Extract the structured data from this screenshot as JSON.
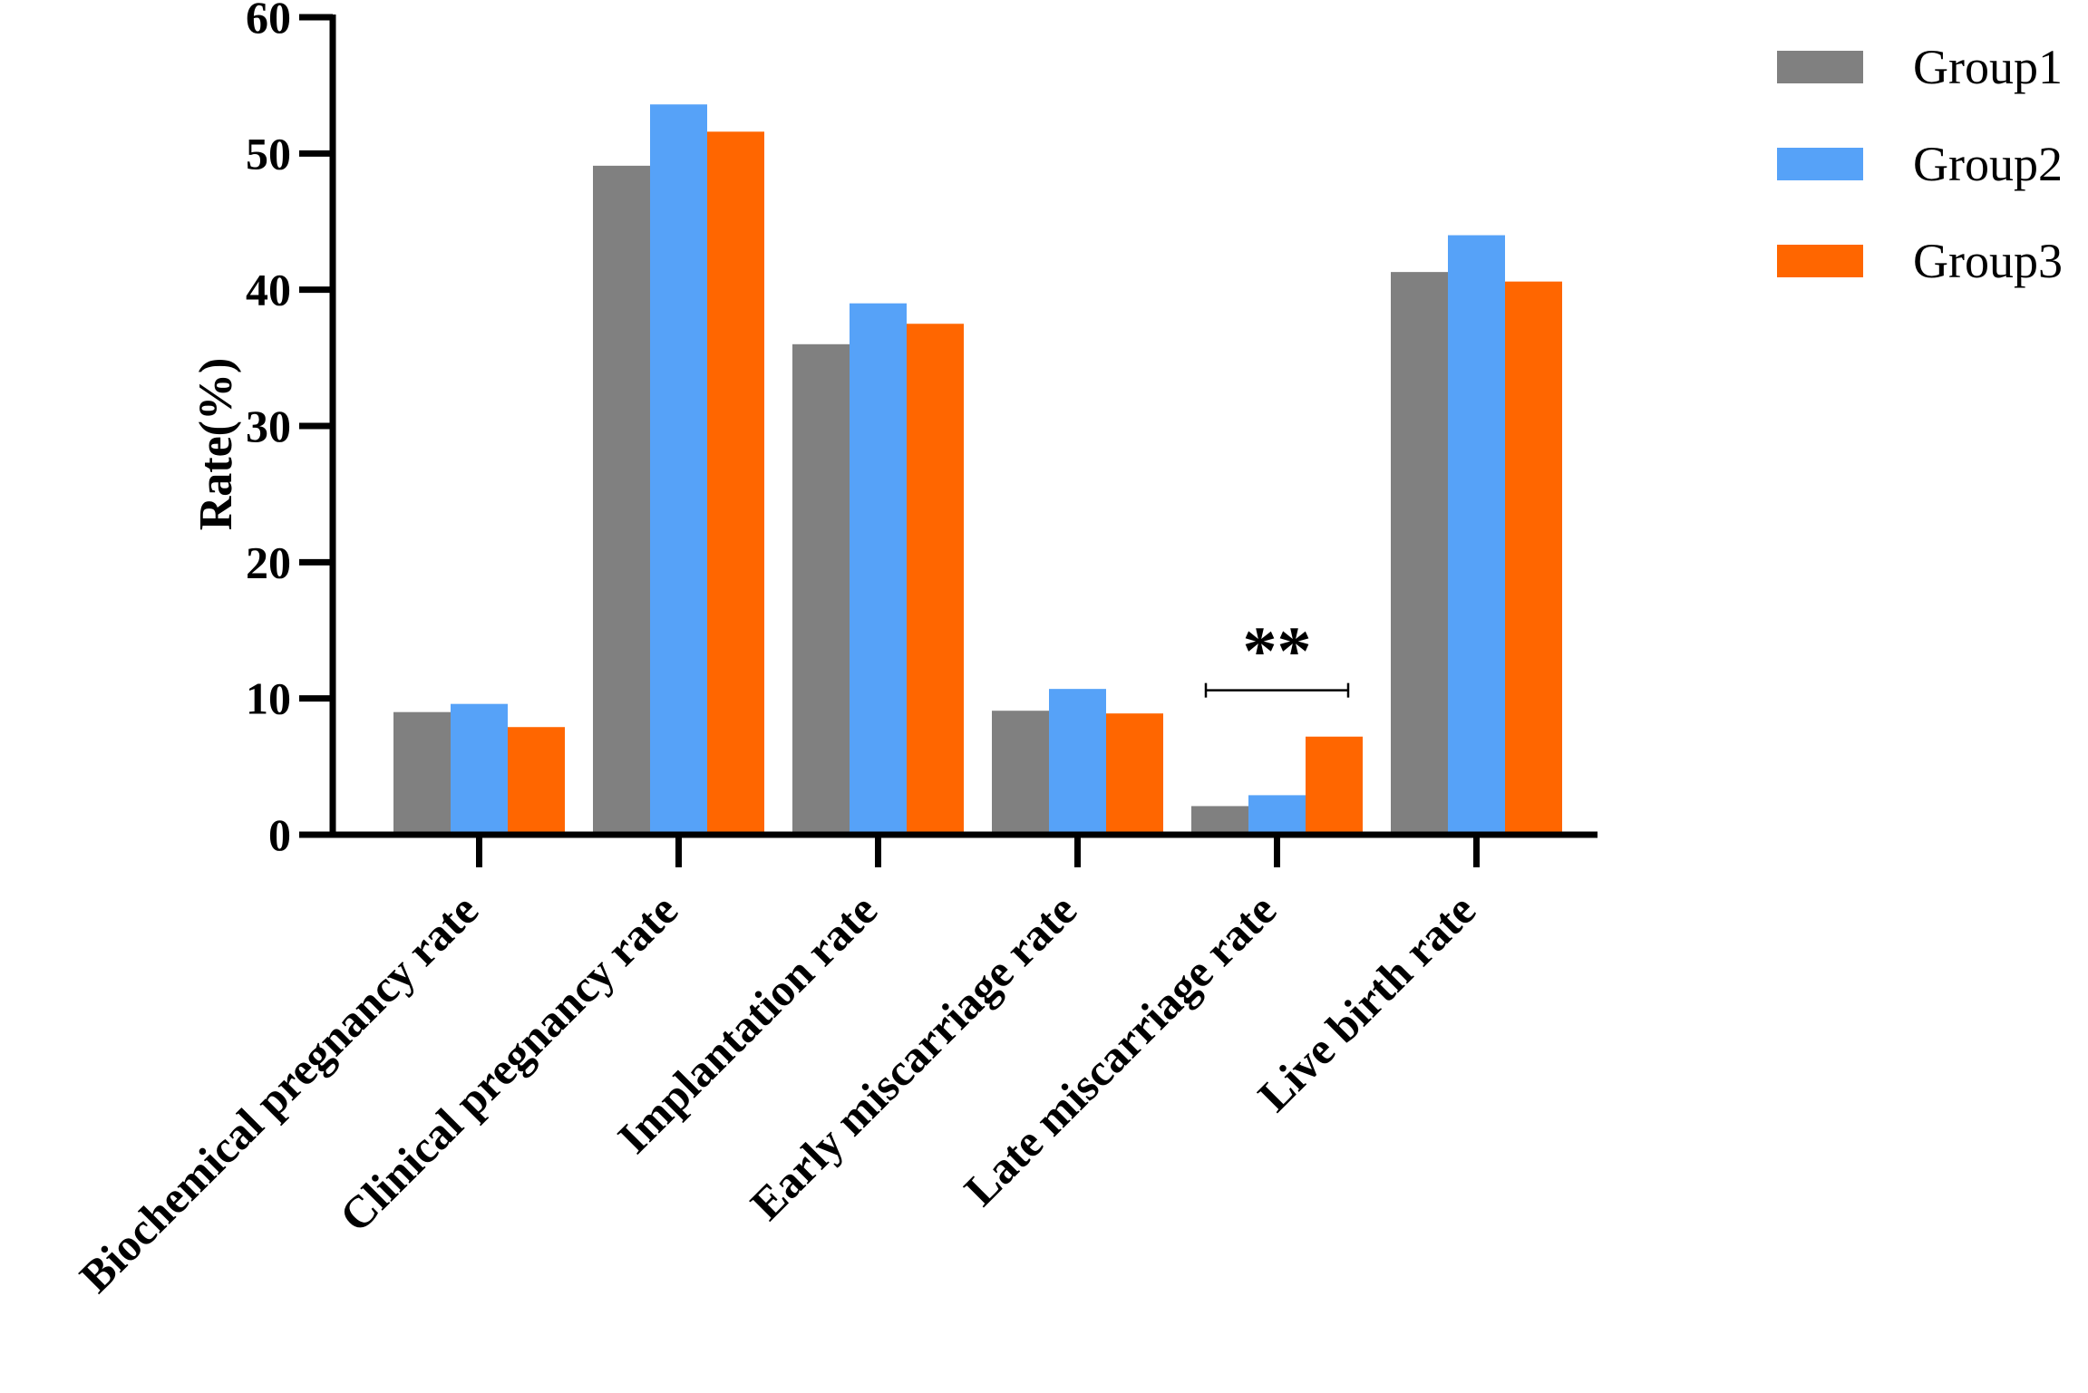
{
  "chart_data": {
    "type": "bar",
    "ylabel": "Rate(%)",
    "xlabel": "",
    "ylim": [
      0,
      60
    ],
    "yticks": [
      0,
      10,
      20,
      30,
      40,
      50,
      60
    ],
    "categories": [
      "Biochemical pregnancy rate",
      "Clinical pregnancy rate",
      "Implantation rate",
      "Early miscarriage rate",
      "Late miscarriage rate",
      "Live birth rate"
    ],
    "series": [
      {
        "name": "Group1",
        "color": "#808080",
        "values": [
          9.0,
          49.1,
          36.0,
          9.1,
          2.1,
          41.3
        ]
      },
      {
        "name": "Group2",
        "color": "#56A2F8",
        "values": [
          9.6,
          53.6,
          39.0,
          10.7,
          2.9,
          44.0
        ]
      },
      {
        "name": "Group3",
        "color": "#FF6600",
        "values": [
          7.9,
          51.6,
          37.5,
          8.9,
          7.2,
          40.6
        ]
      }
    ],
    "grid": false,
    "legend": "top-right",
    "annotations": [
      {
        "text": "**",
        "category": "Late miscarriage rate",
        "from_series": "Group1",
        "to_series": "Group3",
        "y": 10.6
      }
    ]
  }
}
